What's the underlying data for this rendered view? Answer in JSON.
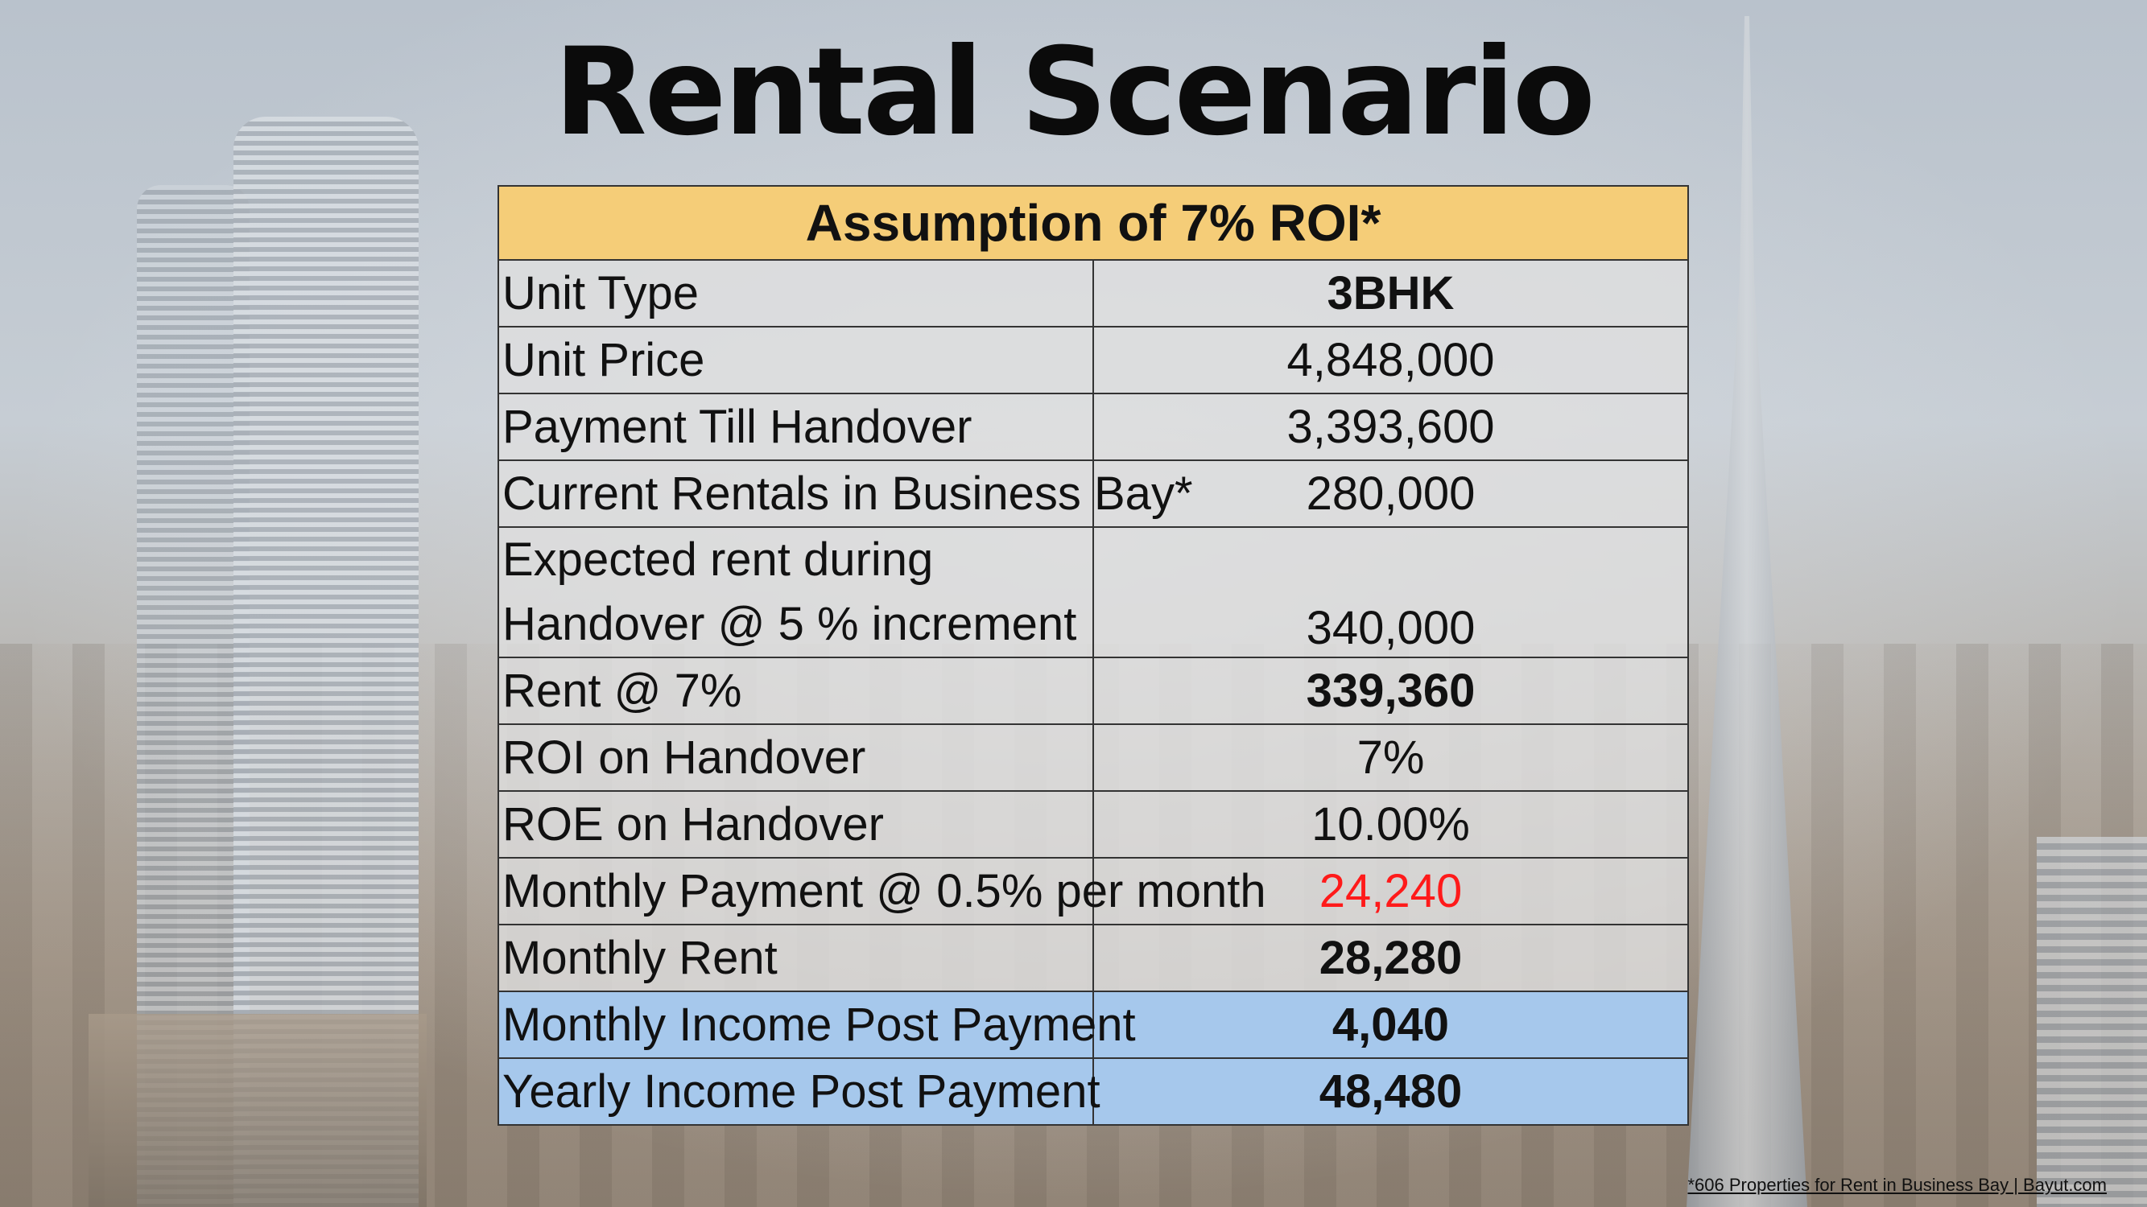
{
  "title": "Rental Scenario",
  "table": {
    "header": "Assumption of 7% ROI*",
    "rows": [
      {
        "label": "Unit Type",
        "value": "3BHK"
      },
      {
        "label": "Unit Price",
        "value": "4,848,000"
      },
      {
        "label": "Payment Till Handover",
        "value": "3,393,600"
      },
      {
        "label": "Current Rentals in Business Bay*",
        "value": "280,000"
      },
      {
        "label": "Expected rent during Handover @ 5 % increment",
        "value": "340,000"
      },
      {
        "label": "Rent @ 7%",
        "value": "339,360"
      },
      {
        "label": "ROI on Handover",
        "value": "7%"
      },
      {
        "label": "ROE on Handover",
        "value": "10.00%"
      },
      {
        "label": "Monthly Payment @ 0.5% per month",
        "value": "24,240"
      },
      {
        "label": "Monthly Rent",
        "value": "28,280"
      },
      {
        "label": "Monthly Income Post Payment",
        "value": "4,040"
      },
      {
        "label": "Yearly Income Post Payment",
        "value": "48,480"
      }
    ]
  },
  "source_note": "*606 Properties for Rent in Business Bay | Bayut.com",
  "colors": {
    "header_bg": "#f5cd78",
    "highlight_bg": "#a6c8ec",
    "negative_text": "#ff1a1a"
  }
}
